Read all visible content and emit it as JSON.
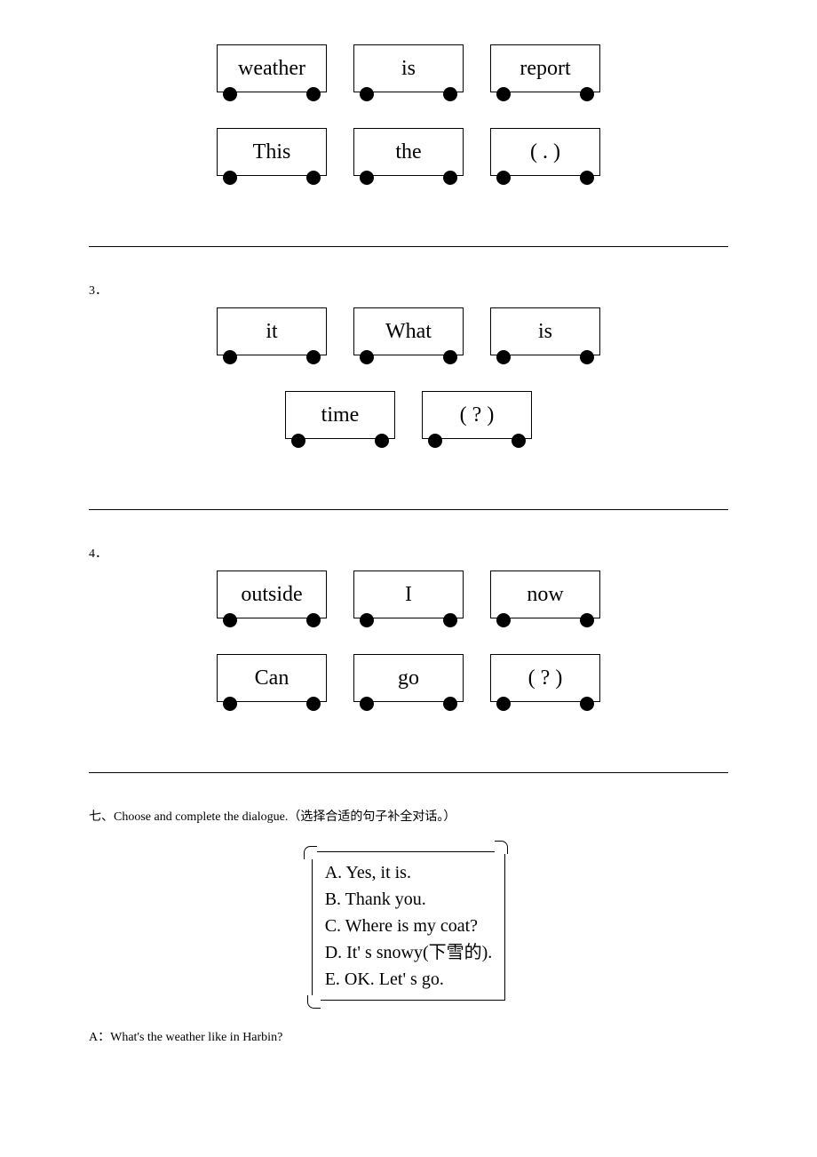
{
  "q2": {
    "row1": [
      "weather",
      "is",
      "report"
    ],
    "row2": [
      "This",
      "the",
      "( . )"
    ]
  },
  "q3": {
    "num": "3．",
    "row1": [
      "it",
      "What",
      "is"
    ],
    "row2": [
      "time",
      "( ? )"
    ]
  },
  "q4": {
    "num": "4．",
    "row1": [
      "outside",
      "I",
      "now"
    ],
    "row2": [
      "Can",
      "go",
      "( ? )"
    ]
  },
  "section7": {
    "title": "七、Choose and complete the dialogue.（选择合适的句子补全对话。）",
    "options": {
      "A": "A. Yes, it is.",
      "B": "B. Thank you.",
      "C": "C. Where is my coat?",
      "D": "D. It' s snowy(下雪的).",
      "E": "E. OK. Let' s go."
    },
    "dialogue_start": "A：What's the weather like in Harbin?"
  }
}
